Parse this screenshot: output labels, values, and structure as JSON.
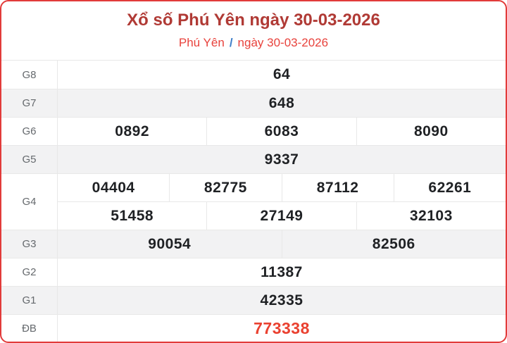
{
  "header": {
    "title": "Xổ số Phú Yên ngày 30-03-2026",
    "breadcrumb": {
      "province": "Phú Yên",
      "separator": "/",
      "date": "ngày 30-03-2026"
    }
  },
  "colors": {
    "border-red": "#e23b3a",
    "title-red": "#b03a35",
    "subtitle-red": "#e8423c",
    "slash-blue": "#3d7ec9",
    "special-red": "#ea4130",
    "row-alt": "#f2f2f3",
    "line": "#e8e8e8",
    "label-gray": "#65696d",
    "num-dark": "#1f2124"
  },
  "table": {
    "rows": [
      {
        "label": "G8",
        "lines": [
          [
            "64"
          ]
        ]
      },
      {
        "label": "G7",
        "lines": [
          [
            "648"
          ]
        ]
      },
      {
        "label": "G6",
        "lines": [
          [
            "0892",
            "6083",
            "8090"
          ]
        ]
      },
      {
        "label": "G5",
        "lines": [
          [
            "9337"
          ]
        ]
      },
      {
        "label": "G4",
        "lines": [
          [
            "04404",
            "82775",
            "87112",
            "62261"
          ],
          [
            "51458",
            "27149",
            "32103"
          ]
        ]
      },
      {
        "label": "G3",
        "lines": [
          [
            "90054",
            "82506"
          ]
        ]
      },
      {
        "label": "G2",
        "lines": [
          [
            "11387"
          ]
        ]
      },
      {
        "label": "G1",
        "lines": [
          [
            "42335"
          ]
        ]
      },
      {
        "label": "ĐB",
        "lines": [
          [
            "773338"
          ]
        ]
      }
    ]
  }
}
